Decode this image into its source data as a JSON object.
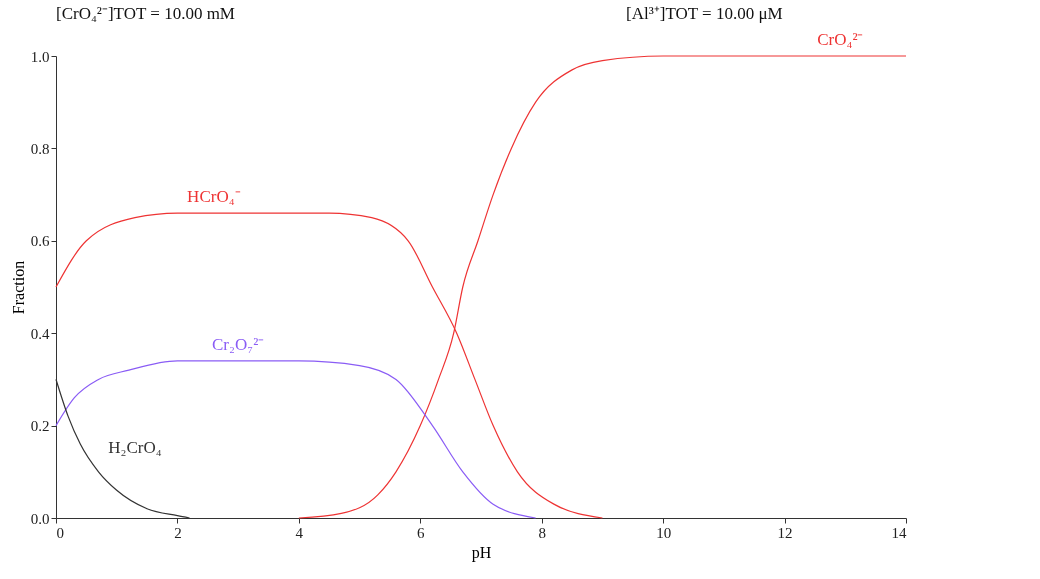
{
  "chart_data": {
    "type": "line",
    "xlabel": "pH",
    "ylabel": "Fraction",
    "annotations": [
      "[CrO₄²⁻]TOT =   10.00 mM",
      "[Al³⁺]TOT =   10.00 μM"
    ],
    "xlim": [
      0,
      14
    ],
    "xticks": [
      0,
      2,
      4,
      6,
      8,
      10,
      12,
      14
    ],
    "ylim": [
      0,
      1
    ],
    "yticks": [
      {
        "value": 0,
        "label": "0.0"
      },
      {
        "value": 0.2,
        "label": "0.2"
      },
      {
        "value": 0.4,
        "label": "0.4"
      },
      {
        "value": 0.6,
        "label": "0.6"
      },
      {
        "value": 0.8,
        "label": "0.8"
      },
      {
        "value": 1,
        "label": "1.0"
      }
    ],
    "grid": false,
    "marker": "none",
    "line_style": "solid",
    "series": [
      {
        "name": "CrO₄²⁻",
        "color": "#ee3333",
        "x": [
          4,
          4.7,
          5.3,
          5.6,
          6,
          6.3,
          6.55,
          6.7,
          6.95,
          7.2,
          7.5,
          7.9,
          8.5,
          9,
          10,
          12,
          14
        ],
        "values": [
          0,
          0.01,
          0.05,
          0.1,
          0.2,
          0.3,
          0.4,
          0.5,
          0.6,
          0.7,
          0.8,
          0.9,
          0.97,
          0.99,
          1,
          1,
          1
        ]
      },
      {
        "name": "HCrO₄⁻",
        "color": "#ee3333",
        "x": [
          0,
          0.5,
          1.3,
          2,
          3,
          4,
          4.5,
          5.2,
          5.8,
          6.2,
          6.6,
          6.9,
          7.2,
          7.6,
          8.2,
          9
        ],
        "values": [
          0.5,
          0.6,
          0.65,
          0.66,
          0.66,
          0.66,
          0.66,
          0.65,
          0.6,
          0.5,
          0.4,
          0.3,
          0.2,
          0.1,
          0.03,
          0
        ]
      },
      {
        "name": "Cr₂O₇²⁻",
        "color": "#8a5cf5",
        "x": [
          0,
          0.3,
          0.7,
          1.2,
          2,
          3,
          4,
          5,
          5.6,
          6.2,
          6.7,
          7.2,
          7.9
        ],
        "values": [
          0.2,
          0.26,
          0.3,
          0.32,
          0.34,
          0.34,
          0.34,
          0.33,
          0.3,
          0.2,
          0.1,
          0.03,
          0
        ]
      },
      {
        "name": "H₂CrO₄",
        "color": "#333333",
        "x": [
          0,
          0.2,
          0.4,
          0.7,
          1,
          1.5,
          2,
          2.2
        ],
        "values": [
          0.3,
          0.22,
          0.16,
          0.1,
          0.06,
          0.02,
          0.005,
          0
        ]
      }
    ]
  }
}
